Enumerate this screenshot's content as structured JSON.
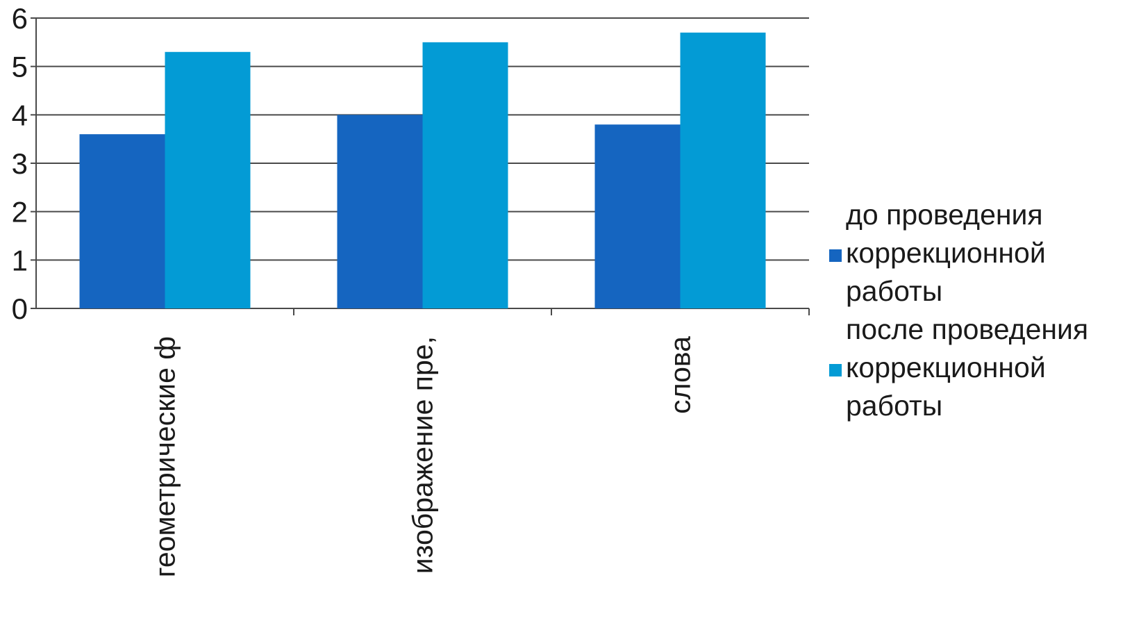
{
  "chart_data": {
    "type": "bar",
    "categories": [
      "геометрические ф",
      "изображение пре,",
      "слова"
    ],
    "series": [
      {
        "name": "до проведения коррекционной работы",
        "values": [
          3.6,
          4.0,
          3.8
        ],
        "color": "#1565c0"
      },
      {
        "name": "после проведения коррекционной работы",
        "values": [
          5.3,
          5.5,
          5.7
        ],
        "color": "#039bd5"
      }
    ],
    "y_ticks": [
      "0",
      "1",
      "2",
      "3",
      "4",
      "5",
      "6"
    ],
    "ylim": [
      0,
      6
    ],
    "grid": true,
    "legend_position": "right",
    "category_label_rotation": "vertical"
  }
}
